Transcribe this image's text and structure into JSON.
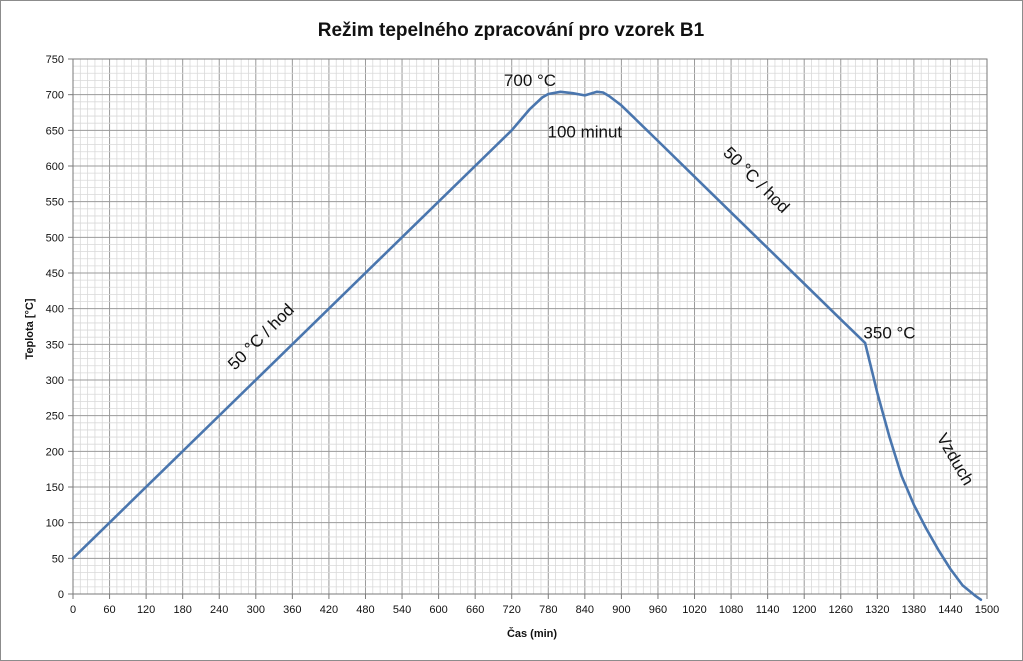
{
  "chart_data": {
    "type": "line",
    "title": "Režim tepelného zpracování pro vzorek B1",
    "xlabel": "Čas  (min)",
    "ylabel": "Teplota [°C]",
    "xlim": [
      0,
      1500
    ],
    "ylim": [
      0,
      750
    ],
    "x_ticks": [
      0,
      60,
      120,
      180,
      240,
      300,
      360,
      420,
      480,
      540,
      600,
      660,
      720,
      780,
      840,
      900,
      960,
      1020,
      1080,
      1140,
      1200,
      1260,
      1320,
      1380,
      1440,
      1500
    ],
    "y_ticks": [
      0,
      50,
      100,
      150,
      200,
      250,
      300,
      350,
      400,
      450,
      500,
      550,
      600,
      650,
      700,
      750
    ],
    "grid": true,
    "series": [
      {
        "color": "#4a76ae",
        "x": [
          0,
          720,
          750,
          770,
          780,
          800,
          820,
          840,
          860,
          870,
          880,
          900,
          960,
          1020,
          1080,
          1140,
          1200,
          1260,
          1300,
          1320,
          1340,
          1360,
          1380,
          1400,
          1420,
          1440,
          1460,
          1480,
          1490
        ],
        "y": [
          50,
          650,
          680,
          696,
          701,
          704,
          702,
          699,
          704,
          703,
          698,
          685,
          635,
          585,
          535,
          485,
          435,
          385,
          352,
          282,
          220,
          165,
          125,
          92,
          62,
          35,
          12,
          -2,
          -8
        ]
      }
    ],
    "annotations": [
      {
        "id": "peak",
        "text": "700 °C",
        "x": 750,
        "y": 712,
        "rotate": 0
      },
      {
        "id": "hold",
        "text": "100 minut",
        "x": 840,
        "y": 640,
        "rotate": 0
      },
      {
        "id": "heat",
        "text": "50 °C / hod",
        "x": 315,
        "y": 355,
        "rotate": -45
      },
      {
        "id": "cool",
        "text": "50 °C / hod",
        "x": 1115,
        "y": 575,
        "rotate": 45
      },
      {
        "id": "end",
        "text": "350 °C",
        "x": 1340,
        "y": 358,
        "rotate": 0
      },
      {
        "id": "air",
        "text": "Vzduch",
        "x": 1440,
        "y": 185,
        "rotate": 60
      }
    ]
  }
}
